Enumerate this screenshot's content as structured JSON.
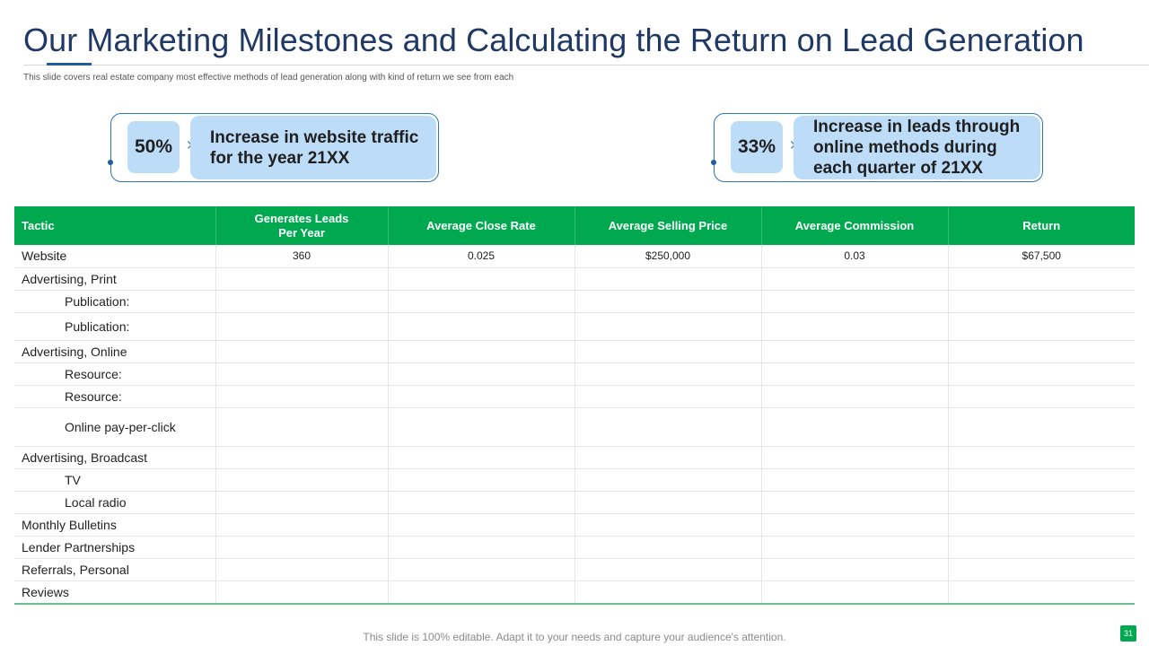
{
  "slide": {
    "title": "Our Marketing Milestones and Calculating the Return on Lead Generation",
    "subtitle": "This slide covers real estate company most effective methods of lead generation along with kind of return we see from each",
    "footer": "This slide is 100% editable. Adapt it to your needs and capture your audience's attention.",
    "page_number": "31"
  },
  "kpis": [
    {
      "percent": "50%",
      "text": "Increase in website traffic for the year 21XX"
    },
    {
      "percent": "33%",
      "text": "Increase in leads through online methods during each quarter of 21XX"
    }
  ],
  "table": {
    "headers": [
      "Tactic",
      "Generates Leads Per Year",
      "Average Close Rate",
      "Average Selling Price",
      "Average Commission",
      "Return"
    ],
    "rows": [
      {
        "tactic": "Website",
        "leads": "360",
        "close_rate": "0.025",
        "price": "$250,000",
        "commission": "0.03",
        "return": "$67,500"
      },
      {
        "tactic": "Advertising, Print"
      },
      {
        "tactic": "Publication:"
      },
      {
        "tactic": "Publication:"
      },
      {
        "tactic": "Advertising, Online"
      },
      {
        "tactic": "Resource:"
      },
      {
        "tactic": "Resource:"
      },
      {
        "tactic": "Online pay-per-click"
      },
      {
        "tactic": "Advertising, Broadcast"
      },
      {
        "tactic": "TV"
      },
      {
        "tactic": "Local radio"
      },
      {
        "tactic": "Monthly Bulletins"
      },
      {
        "tactic": "Lender Partnerships"
      },
      {
        "tactic": "Referrals, Personal"
      },
      {
        "tactic": "Reviews"
      }
    ]
  },
  "colors": {
    "title": "#1f3864",
    "accent_blue": "#2e75b6",
    "kpi_fill": "#bcdcf8",
    "header_green": "#00a94f"
  }
}
